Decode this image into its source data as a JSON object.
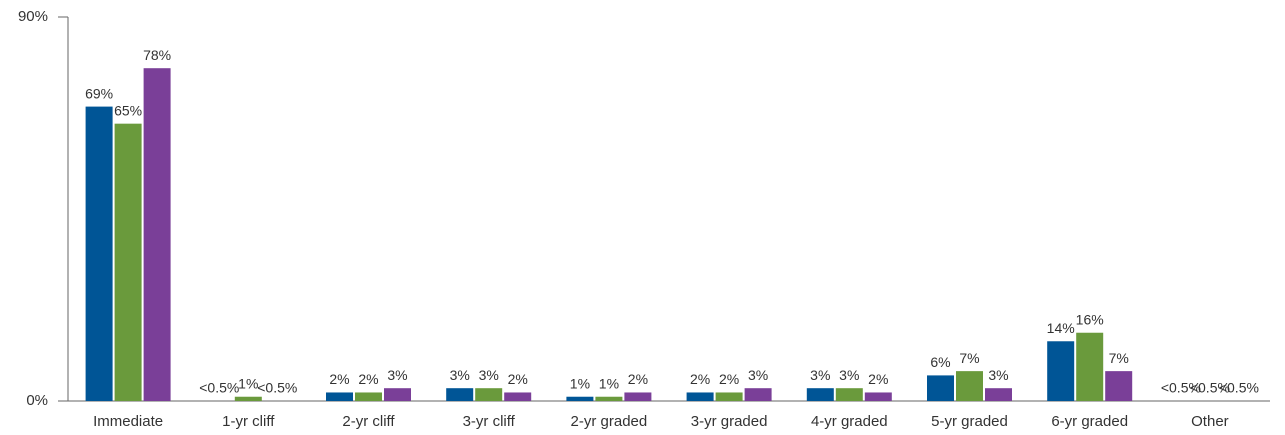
{
  "chart_data": {
    "type": "bar",
    "categories": [
      "Immediate",
      "1-yr cliff",
      "2-yr cliff",
      "3-yr cliff",
      "2-yr graded",
      "3-yr graded",
      "4-yr graded",
      "5-yr graded",
      "6-yr graded",
      "Other"
    ],
    "series": [
      {
        "color": "#005596",
        "values": [
          69,
          0,
          2,
          3,
          1,
          2,
          3,
          6,
          14,
          0
        ],
        "value_labels": [
          "69%",
          "<0.5%",
          "2%",
          "3%",
          "1%",
          "2%",
          "3%",
          "6%",
          "14%",
          "<0.5%"
        ]
      },
      {
        "color": "#6a9a3c",
        "values": [
          65,
          1,
          2,
          3,
          1,
          2,
          3,
          7,
          16,
          0
        ],
        "value_labels": [
          "65%",
          "1%",
          "2%",
          "3%",
          "1%",
          "2%",
          "3%",
          "7%",
          "16%",
          "<0.5%"
        ]
      },
      {
        "color": "#7a3f98",
        "values": [
          78,
          0,
          3,
          2,
          2,
          3,
          2,
          3,
          7,
          0
        ],
        "value_labels": [
          "78%",
          "<0.5%",
          "3%",
          "2%",
          "2%",
          "3%",
          "2%",
          "3%",
          "7%",
          "<0.5%"
        ]
      }
    ],
    "ylim": [
      0,
      90
    ],
    "yticks": [
      {
        "value": 0,
        "label": "0%"
      },
      {
        "value": 90,
        "label": "90%"
      }
    ]
  }
}
